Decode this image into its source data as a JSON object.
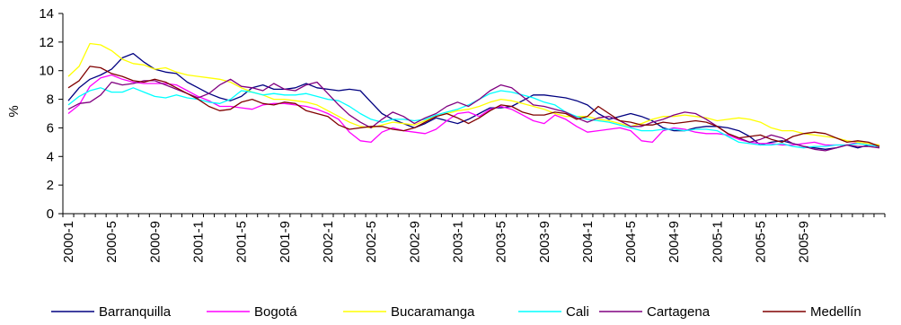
{
  "chart_data": {
    "type": "line",
    "title": "",
    "xlabel": "",
    "ylabel": "%",
    "ylim": [
      0,
      14
    ],
    "yticks": [
      0,
      2,
      4,
      6,
      8,
      10,
      12,
      14
    ],
    "xtick_labels": [
      "2000-1",
      "2000-5",
      "2000-9",
      "2001-1",
      "2001-5",
      "2001-9",
      "2002-1",
      "2002-5",
      "2002-9",
      "2003-1",
      "2003-5",
      "2003-9",
      "2004-1",
      "2004-5",
      "2004-9",
      "2005-1",
      "2005-5",
      "2005-9"
    ],
    "legend_position": "bottom",
    "series": [
      {
        "name": "Barranquilla",
        "color": "#000080",
        "values": [
          7.9,
          8.8,
          9.4,
          9.7,
          10.1,
          10.9,
          11.2,
          10.6,
          10.1,
          9.9,
          9.8,
          9.2,
          8.8,
          8.4,
          8.1,
          7.9,
          8.2,
          8.8,
          9.0,
          8.7,
          8.7,
          8.8,
          9.1,
          8.8,
          8.7,
          8.6,
          8.7,
          8.6,
          7.8,
          7.0,
          6.6,
          6.3,
          6.0,
          6.3,
          6.7,
          6.5,
          6.3,
          6.6,
          7.0,
          7.4,
          7.4,
          7.5,
          7.9,
          8.3,
          8.3,
          8.2,
          8.1,
          7.9,
          7.6,
          7.0,
          6.6,
          6.8,
          7.0,
          6.8,
          6.5,
          6.0,
          5.8,
          5.8,
          6.0,
          6.1,
          6.1,
          6.0,
          5.8,
          5.4,
          4.8,
          5.0,
          5.1,
          4.9,
          4.7,
          4.6,
          4.5,
          4.6,
          4.8,
          4.6,
          4.8,
          4.7
        ]
      },
      {
        "name": "Bogotá",
        "color": "#ff00ff",
        "values": [
          7.0,
          7.6,
          8.9,
          9.5,
          9.7,
          9.4,
          9.2,
          9.1,
          9.1,
          9.1,
          9.0,
          8.6,
          8.2,
          7.9,
          7.5,
          7.5,
          7.4,
          7.3,
          7.6,
          7.7,
          7.7,
          7.6,
          7.5,
          7.3,
          7.0,
          6.6,
          5.7,
          5.1,
          5.0,
          5.7,
          6.0,
          5.8,
          5.7,
          5.6,
          5.9,
          6.5,
          7.0,
          7.1,
          6.8,
          7.3,
          7.5,
          7.3,
          6.9,
          6.5,
          6.3,
          6.9,
          6.6,
          6.1,
          5.7,
          5.8,
          5.9,
          6.0,
          5.8,
          5.1,
          5.0,
          5.8,
          6.0,
          5.9,
          5.7,
          5.6,
          5.6,
          5.5,
          5.2,
          5.0,
          4.9,
          4.9,
          4.8,
          4.8,
          4.9,
          5.0,
          4.8,
          4.8,
          4.8,
          5.0,
          4.9,
          4.7
        ]
      },
      {
        "name": "Bucaramanga",
        "color": "#ffff00",
        "values": [
          9.6,
          10.3,
          11.9,
          11.8,
          11.4,
          10.8,
          10.5,
          10.4,
          10.1,
          10.2,
          9.9,
          9.7,
          9.6,
          9.5,
          9.4,
          9.2,
          8.8,
          8.5,
          8.3,
          8.0,
          8.0,
          7.9,
          7.8,
          7.6,
          7.2,
          6.8,
          6.4,
          6.1,
          6.0,
          6.2,
          6.4,
          6.3,
          6.2,
          6.5,
          6.8,
          7.0,
          7.2,
          7.3,
          7.5,
          7.8,
          8.0,
          7.9,
          7.7,
          7.5,
          7.3,
          7.0,
          6.8,
          6.8,
          6.8,
          6.6,
          6.5,
          6.3,
          6.1,
          6.3,
          6.6,
          6.8,
          6.8,
          6.9,
          6.8,
          6.7,
          6.5,
          6.6,
          6.7,
          6.6,
          6.4,
          6.0,
          5.8,
          5.8,
          5.6,
          5.5,
          5.4,
          5.3,
          5.1,
          5.0,
          4.9,
          4.8
        ]
      },
      {
        "name": "Cali",
        "color": "#00ffff",
        "values": [
          7.6,
          8.2,
          8.6,
          8.8,
          8.5,
          8.5,
          8.8,
          8.5,
          8.2,
          8.1,
          8.3,
          8.1,
          8.0,
          7.8,
          7.7,
          8.0,
          8.6,
          8.5,
          8.3,
          8.4,
          8.3,
          8.3,
          8.4,
          8.2,
          8.0,
          7.9,
          7.5,
          7.0,
          6.6,
          6.4,
          6.6,
          6.6,
          6.5,
          6.6,
          6.9,
          7.1,
          7.3,
          7.6,
          8.0,
          8.4,
          8.6,
          8.5,
          8.3,
          8.1,
          7.8,
          7.6,
          7.1,
          6.8,
          6.6,
          6.5,
          6.4,
          6.2,
          6.0,
          5.8,
          5.8,
          5.9,
          5.9,
          5.8,
          5.9,
          5.9,
          5.8,
          5.4,
          5.0,
          4.9,
          4.8,
          4.8,
          4.9,
          4.7,
          4.6,
          4.7,
          4.7,
          4.8,
          4.8,
          4.9,
          4.8,
          4.7
        ]
      },
      {
        "name": "Cartagena",
        "color": "#800080",
        "values": [
          7.3,
          7.7,
          7.8,
          8.3,
          9.2,
          9.0,
          9.1,
          9.3,
          9.3,
          9.0,
          8.7,
          8.4,
          8.1,
          8.4,
          9.0,
          9.4,
          8.9,
          8.8,
          8.6,
          9.1,
          8.7,
          8.6,
          9.0,
          9.2,
          8.4,
          7.6,
          6.9,
          6.4,
          6.0,
          6.6,
          7.1,
          6.8,
          6.3,
          6.7,
          7.0,
          7.5,
          7.8,
          7.5,
          8.0,
          8.6,
          9.0,
          8.8,
          8.2,
          7.6,
          7.5,
          7.3,
          7.1,
          6.7,
          6.4,
          6.7,
          6.8,
          6.5,
          6.1,
          6.1,
          6.4,
          6.6,
          6.9,
          7.1,
          7.0,
          6.6,
          6.1,
          5.6,
          5.3,
          5.0,
          5.2,
          5.5,
          5.3,
          4.9,
          4.7,
          4.5,
          4.4,
          4.6,
          4.8,
          4.7,
          4.7,
          4.6
        ]
      },
      {
        "name": "Medellín",
        "color": "#800000",
        "values": [
          8.8,
          9.3,
          10.3,
          10.2,
          9.8,
          9.6,
          9.3,
          9.2,
          9.4,
          9.2,
          8.8,
          8.4,
          8.0,
          7.5,
          7.2,
          7.3,
          7.8,
          8.0,
          7.7,
          7.6,
          7.8,
          7.7,
          7.2,
          7.0,
          6.8,
          6.2,
          5.9,
          6.0,
          6.1,
          6.1,
          5.9,
          5.8,
          6.0,
          6.4,
          6.8,
          7.0,
          6.7,
          6.3,
          6.7,
          7.2,
          7.6,
          7.5,
          7.1,
          6.9,
          6.9,
          7.1,
          7.0,
          6.6,
          6.8,
          7.5,
          7.0,
          6.5,
          6.4,
          6.2,
          6.2,
          6.4,
          6.3,
          6.4,
          6.5,
          6.4,
          6.1,
          5.6,
          5.3,
          5.4,
          5.5,
          5.2,
          5.0,
          5.4,
          5.6,
          5.7,
          5.6,
          5.3,
          5.0,
          5.1,
          5.0,
          4.7
        ]
      }
    ]
  }
}
